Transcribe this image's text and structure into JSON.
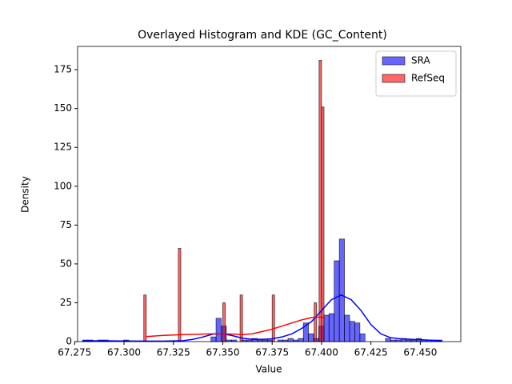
{
  "chart_data": {
    "type": "histogram",
    "title": "Overlayed Histogram and KDE (GC_Content)",
    "xlabel": "Value",
    "ylabel": "Density",
    "xlim": [
      67.2765,
      67.4705
    ],
    "ylim": [
      0,
      190
    ],
    "xticks": [
      67.275,
      {
        "value": 67.3,
        "label": "67.300"
      },
      67.325,
      {
        "value": 67.35,
        "label": "67.350"
      },
      67.375,
      {
        "value": 67.4,
        "label": "67.400"
      },
      67.425,
      {
        "value": 67.45,
        "label": "67.450"
      }
    ],
    "yticks": [
      0,
      25,
      50,
      75,
      100,
      125,
      150,
      175
    ],
    "legend": "upper right",
    "series": [
      {
        "name": "SRA",
        "color": "#0000ff",
        "bins": [
          67.279,
          67.2816,
          67.2842,
          67.2868,
          67.2894,
          67.292,
          67.2946,
          67.2972,
          67.2998,
          67.3024,
          67.305,
          67.3076,
          67.3102,
          67.3128,
          67.3154,
          67.318,
          67.3206,
          67.3232,
          67.3258,
          67.3284,
          67.331,
          67.3336,
          67.3362,
          67.3388,
          67.3414,
          67.344,
          67.3466,
          67.3492,
          67.3518,
          67.3544,
          67.357,
          67.3596,
          67.3622,
          67.3648,
          67.3674,
          67.37,
          67.3726,
          67.3752,
          67.3778,
          67.3804,
          67.383,
          67.3856,
          67.3882,
          67.3908,
          67.3934,
          67.396,
          67.3986,
          67.4012,
          67.4038,
          67.4064,
          67.409,
          67.4116,
          67.4142,
          67.4168,
          67.4194,
          67.422,
          67.4246,
          67.4272,
          67.4298,
          67.4324,
          67.435,
          67.4376,
          67.4402,
          67.4428,
          67.4454,
          67.448,
          67.4506,
          67.4532,
          67.4558,
          67.4584,
          67.461
        ],
        "values": [
          1,
          1,
          0,
          1,
          1,
          0,
          0,
          0,
          1,
          0,
          0,
          0,
          0,
          0,
          0,
          0,
          0,
          0,
          0,
          0,
          0,
          0,
          0,
          0,
          0,
          3,
          15,
          10,
          1,
          1,
          0,
          1,
          1,
          2,
          1,
          1,
          1,
          0,
          1,
          1,
          2,
          1,
          2,
          12,
          5,
          2,
          10,
          17,
          18,
          52,
          66,
          17,
          13,
          12,
          5,
          0,
          0,
          0,
          0,
          2,
          1,
          1,
          2,
          1,
          1,
          2,
          1,
          1,
          1,
          1
        ],
        "kde_x": [
          67.279,
          67.29,
          67.3,
          67.31,
          67.32,
          67.33,
          67.335,
          67.34,
          67.345,
          67.35,
          67.355,
          67.36,
          67.365,
          67.37,
          67.375,
          67.38,
          67.385,
          67.39,
          67.395,
          67.4,
          67.405,
          67.41,
          67.415,
          67.42,
          67.425,
          67.43,
          67.435,
          67.44,
          67.45,
          67.461
        ],
        "kde_y": [
          0.5,
          0.5,
          0.4,
          0.3,
          0.3,
          0.6,
          1.5,
          3,
          4.8,
          5,
          3.8,
          2.2,
          1.5,
          1.5,
          1.8,
          3,
          5,
          8.5,
          13,
          20,
          27,
          30,
          27,
          20,
          11,
          5,
          2.5,
          1.8,
          1.2,
          0.5
        ]
      },
      {
        "name": "RefSeq",
        "color": "#ff0000",
        "bins": [
          67.31,
          67.31125,
          67.3125,
          67.31375,
          67.315,
          67.31625,
          67.3175,
          67.31875,
          67.32,
          67.32125,
          67.3225,
          67.32375,
          67.325,
          67.32625,
          67.3275,
          67.32875,
          67.33,
          67.33125,
          67.3325,
          67.33375,
          67.335,
          67.33625,
          67.3375,
          67.33875,
          67.34,
          67.34125,
          67.3425,
          67.34375,
          67.345,
          67.34625,
          67.3475,
          67.34875,
          67.35,
          67.35125,
          67.3525,
          67.35375,
          67.355,
          67.35625,
          67.3575,
          67.35875,
          67.36,
          67.36125,
          67.3625,
          67.36375,
          67.365,
          67.36625,
          67.3675,
          67.36875,
          67.37,
          67.37125,
          67.3725,
          67.37375,
          67.375,
          67.37625,
          67.3775,
          67.37875,
          67.38,
          67.38125,
          67.3825,
          67.38375,
          67.385,
          67.38625,
          67.3875,
          67.38875,
          67.39,
          67.39125,
          67.3925,
          67.39375,
          67.395,
          67.39625,
          67.3975,
          67.39875,
          67.4,
          67.40125
        ],
        "values": [
          30,
          0,
          0,
          0,
          0,
          0,
          0,
          0,
          0,
          0,
          0,
          0,
          0,
          0,
          60,
          0,
          0,
          0,
          0,
          0,
          0,
          0,
          0,
          0,
          0,
          0,
          0,
          0,
          0,
          0,
          0,
          0,
          25,
          0,
          0,
          0,
          0,
          0,
          0,
          30,
          0,
          0,
          0,
          0,
          0,
          0,
          0,
          0,
          0,
          0,
          0,
          0,
          30,
          0,
          0,
          0,
          0,
          0,
          0,
          0,
          0,
          0,
          0,
          0,
          0,
          0,
          0,
          0,
          0,
          25,
          0,
          181,
          151
        ],
        "kde_x": [
          67.311,
          67.32,
          67.33,
          67.34,
          67.345,
          67.35,
          67.355,
          67.36,
          67.365,
          67.37,
          67.375,
          67.38,
          67.385,
          67.39,
          67.395,
          67.4,
          67.4015
        ],
        "kde_y": [
          3.2,
          4,
          4.5,
          4.8,
          5,
          5,
          4.8,
          4.5,
          5,
          6.5,
          8,
          10,
          12,
          14,
          15.5,
          15.8,
          15
        ]
      }
    ]
  }
}
